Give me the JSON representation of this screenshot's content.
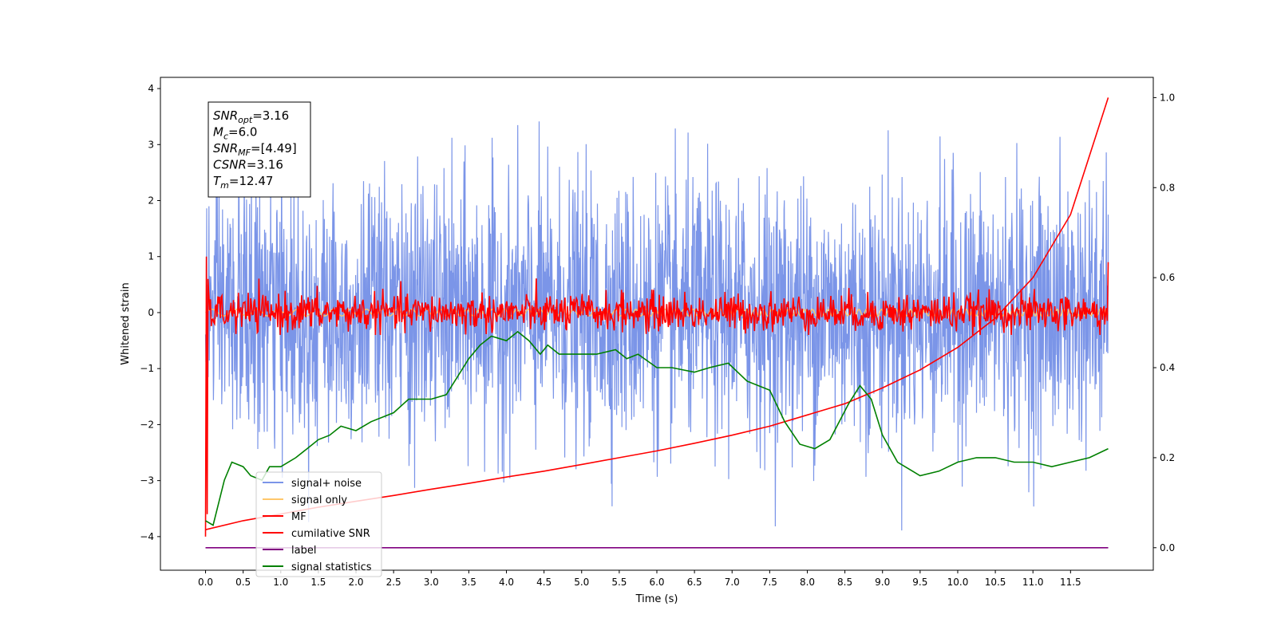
{
  "chart_data": {
    "type": "line",
    "xlabel": "Time (s)",
    "ylabel": "Whitened strain",
    "ylabel_right": "",
    "xlim": [
      -0.6,
      12.6
    ],
    "ylim_left": [
      -4.6,
      4.2
    ],
    "ylim_right": [
      -0.05,
      1.045
    ],
    "xticks": [
      "0.0",
      "0.5",
      "1.0",
      "1.5",
      "2.0",
      "2.5",
      "3.0",
      "3.5",
      "4.0",
      "4.5",
      "5.0",
      "5.5",
      "6.0",
      "6.5",
      "7.0",
      "7.5",
      "8.0",
      "8.5",
      "9.0",
      "9.5",
      "10.0",
      "10.5",
      "11.0",
      "11.5"
    ],
    "yticks_left": [
      -4,
      -3,
      -2,
      -1,
      0,
      1,
      2,
      3,
      4
    ],
    "yticks_right": [
      "0.0",
      "0.2",
      "0.4",
      "0.6",
      "0.8",
      "1.0"
    ],
    "grid": false,
    "legend_position": "lower-left",
    "series": [
      {
        "name": "signal+ noise",
        "color": "#7b95e8",
        "axis": "left",
        "kind": "noise",
        "x_range": [
          0,
          12
        ],
        "amplitude_range": [
          -4.1,
          3.8
        ]
      },
      {
        "name": "signal only",
        "color": "#ffc76b",
        "axis": "left",
        "kind": "chirp",
        "x_range": [
          0,
          12
        ],
        "amplitude": 0.06
      },
      {
        "name": "MF",
        "color": "#ff0000",
        "axis": "left",
        "kind": "noise",
        "x_range": [
          0,
          12
        ],
        "amplitude_range": [
          -0.4,
          0.75
        ]
      },
      {
        "name": "cumilative SNR",
        "color": "#ff0000",
        "axis": "right",
        "x": [
          0.0,
          0.5,
          1.0,
          1.5,
          2.0,
          2.5,
          3.0,
          3.5,
          4.0,
          4.5,
          5.0,
          5.5,
          6.0,
          6.5,
          7.0,
          7.5,
          8.0,
          8.5,
          9.0,
          9.5,
          10.0,
          10.5,
          11.0,
          11.5,
          12.0
        ],
        "values": [
          0.04,
          0.06,
          0.075,
          0.09,
          0.103,
          0.116,
          0.13,
          0.143,
          0.157,
          0.17,
          0.185,
          0.2,
          0.215,
          0.232,
          0.25,
          0.27,
          0.295,
          0.32,
          0.355,
          0.395,
          0.445,
          0.51,
          0.6,
          0.74,
          1.0
        ]
      },
      {
        "name": "label",
        "color": "#800080",
        "axis": "right",
        "x": [
          0,
          12
        ],
        "values": [
          0.0,
          0.0
        ]
      },
      {
        "name": "signal statistics",
        "color": "#008000",
        "axis": "right",
        "x": [
          0.0,
          0.1,
          0.25,
          0.35,
          0.5,
          0.6,
          0.75,
          0.85,
          1.0,
          1.2,
          1.35,
          1.5,
          1.65,
          1.8,
          2.0,
          2.2,
          2.5,
          2.7,
          3.0,
          3.2,
          3.5,
          3.65,
          3.8,
          4.0,
          4.15,
          4.3,
          4.45,
          4.55,
          4.7,
          5.0,
          5.2,
          5.45,
          5.6,
          5.75,
          6.0,
          6.2,
          6.5,
          6.7,
          6.95,
          7.2,
          7.5,
          7.7,
          7.9,
          8.1,
          8.3,
          8.55,
          8.7,
          8.85,
          9.0,
          9.2,
          9.5,
          9.75,
          10.0,
          10.25,
          10.5,
          10.75,
          11.0,
          11.25,
          11.5,
          11.75,
          12.0
        ],
        "values": [
          0.06,
          0.05,
          0.15,
          0.19,
          0.18,
          0.16,
          0.15,
          0.18,
          0.18,
          0.2,
          0.22,
          0.24,
          0.25,
          0.27,
          0.26,
          0.28,
          0.3,
          0.33,
          0.33,
          0.34,
          0.42,
          0.45,
          0.47,
          0.46,
          0.48,
          0.46,
          0.43,
          0.45,
          0.43,
          0.43,
          0.43,
          0.44,
          0.42,
          0.43,
          0.4,
          0.4,
          0.39,
          0.4,
          0.41,
          0.37,
          0.35,
          0.28,
          0.23,
          0.22,
          0.24,
          0.32,
          0.36,
          0.33,
          0.25,
          0.19,
          0.16,
          0.17,
          0.19,
          0.2,
          0.2,
          0.19,
          0.19,
          0.18,
          0.19,
          0.2,
          0.22
        ]
      }
    ],
    "annotation": {
      "lines": [
        {
          "base": "SNR",
          "sub": "opt",
          "value": "=3.16"
        },
        {
          "base": "M",
          "sub": "c",
          "value": "=6.0"
        },
        {
          "base": "SNR",
          "sub": "MF",
          "value": "=[4.49]"
        },
        {
          "base": "CSNR",
          "sub": "",
          "value": "=3.16"
        },
        {
          "base": "T",
          "sub": "m",
          "value": "=12.47"
        }
      ]
    }
  }
}
